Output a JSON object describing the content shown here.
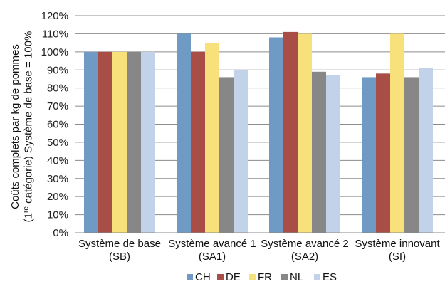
{
  "chart_data": {
    "type": "bar",
    "ylabel_line1": "Coûts complets par kg de pommes",
    "ylabel_line2_pre": "(1",
    "ylabel_line2_sup": "re",
    "ylabel_line2_post": " catégorie) Système de base = 100%",
    "ylim": [
      0,
      120
    ],
    "yticks": [
      0,
      10,
      20,
      30,
      40,
      50,
      60,
      70,
      80,
      90,
      100,
      110,
      120
    ],
    "ytick_suffix": "%",
    "grid": true,
    "legend_position": "bottom",
    "categories": [
      [
        "Système de base",
        "(SB)"
      ],
      [
        "Système avancé 1",
        "(SA1)"
      ],
      [
        "Système avancé 2",
        "(SA2)"
      ],
      [
        "Système innovant",
        "(SI)"
      ]
    ],
    "series": [
      {
        "name": "CH",
        "color": "#6f9ac4",
        "values": [
          100,
          110,
          108,
          86
        ]
      },
      {
        "name": "DE",
        "color": "#a84e47",
        "values": [
          100,
          100,
          111,
          88
        ]
      },
      {
        "name": "FR",
        "color": "#f8e07a",
        "values": [
          100,
          105,
          110,
          110
        ]
      },
      {
        "name": "NL",
        "color": "#878787",
        "values": [
          100,
          86,
          89,
          86
        ]
      },
      {
        "name": "ES",
        "color": "#c2d3e9",
        "values": [
          100,
          90,
          87,
          91
        ]
      }
    ]
  }
}
